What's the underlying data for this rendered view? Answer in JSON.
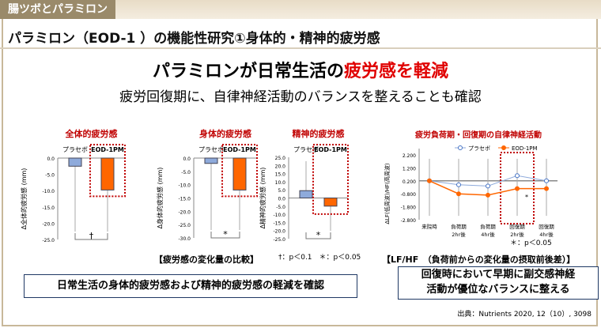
{
  "header": {
    "tag": "腸ツボとパラミロン",
    "subtitle": "パラミロン（EOD-1 ）の機能性研究①身体的・精神的疲労感"
  },
  "headline": {
    "part1": "パラミロンが日常生活の",
    "part2": "疲労感を軽減"
  },
  "note": "疲労回復期に、自律神経活動のバランスを整えることも確認",
  "chart_data": [
    {
      "type": "bar",
      "title": "全体的疲労感",
      "ylabel": "Δ全体的疲労感 (mm)",
      "categories": [
        "プラセボ",
        "EOD-1PM"
      ],
      "values": [
        -2.5,
        -9.8
      ],
      "ylim": [
        -25,
        0
      ],
      "ticks": [
        "0.0",
        "-5.0",
        "-10.0",
        "-15.0",
        "-20.0",
        "-25.0"
      ],
      "sig": "†"
    },
    {
      "type": "bar",
      "title": "身体的疲労感",
      "ylabel": "Δ身体的疲労感 (mm)",
      "categories": [
        "プラセボ",
        "EOD-1PM"
      ],
      "values": [
        -2.0,
        -12.0
      ],
      "ylim": [
        -30,
        0
      ],
      "ticks": [
        "0.0",
        "-5.0",
        "-10.0",
        "-15.0",
        "-20.0",
        "-25.0",
        "-30.0"
      ],
      "sig": "*"
    },
    {
      "type": "bar",
      "title": "精神的疲労感",
      "ylabel": "Δ精神的疲労感 (mm)",
      "categories": [
        "プラセボ",
        "EOD-1PM"
      ],
      "values": [
        4.5,
        -5.0
      ],
      "ylim": [
        -25,
        25
      ],
      "ticks": [
        "25.0",
        "20.0",
        "15.0",
        "10.0",
        "5.0",
        "0.0",
        "-5.0",
        "-10.0",
        "-15.0",
        "-20.0",
        "-25.0"
      ],
      "sig": "*"
    },
    {
      "type": "line",
      "title": "疲労負荷期・回復期の自律神経活動",
      "ylabel": "ΔLF(低周波)/HF(高周波)",
      "categories": [
        "来院時",
        "負荷期\n2hr後",
        "負荷期\n4hr後",
        "回復期\n2hr後",
        "回復期\n4hr後"
      ],
      "series": [
        {
          "name": "プラセボ",
          "values": [
            0.2,
            -0.1,
            -0.2,
            0.6,
            0.2
          ]
        },
        {
          "name": "EOD-1PM",
          "values": [
            0.2,
            -0.8,
            -0.9,
            -0.4,
            -0.4
          ]
        }
      ],
      "ylim": [
        -2.8,
        2.2
      ],
      "ticks": [
        "2.200",
        "1.200",
        "0.200",
        "-0.800",
        "-1.800",
        "-2.800"
      ],
      "sig": "*"
    }
  ],
  "legend_sig": "†：p＜0.1　＊：p＜0.05",
  "line_sig": "＊：p＜0.05",
  "caption_left": "【疲労感の変化量の比較】",
  "caption_right": "【LF/HF　（負荷前からの変化量の摂取前後差）】",
  "box_left": "日常生活の身体的疲労感および精神的疲労感の軽減を確認",
  "box_right": [
    "回復時において早期に副交感神経",
    "活動が優位なバランスに整える"
  ],
  "source": "出典：Nutrients 2020, 12（10）, 3098",
  "colors": {
    "placebo": "#8eaadb",
    "eod": "#ff6600",
    "red": "#c00000"
  }
}
